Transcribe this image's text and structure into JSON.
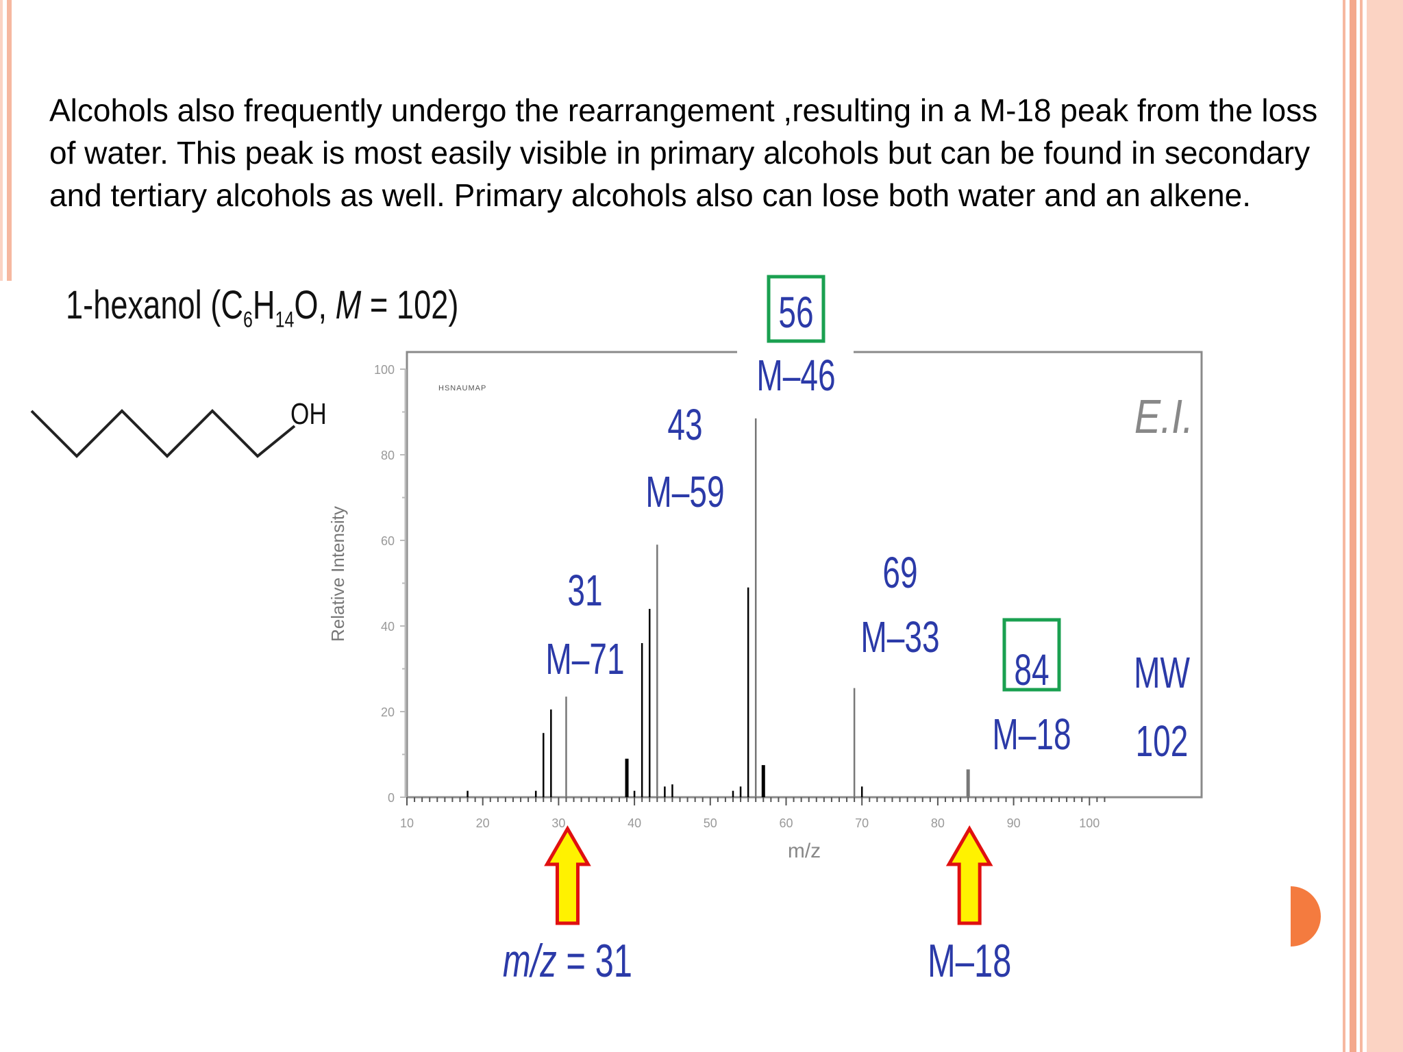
{
  "body_text": "Alcohols also frequently undergo the rearrangement ,resulting in a M-18 peak from the loss of water. This peak is most easily visible in primary alcohols but can be found in secondary and tertiary alcohols as well. Primary alcohols also can lose both water and an alkene.",
  "compound": {
    "name": "1-hexanol (C",
    "c_sub": "6",
    "h": "H",
    "h_sub": "14",
    "o": "O, ",
    "m_italic": "M",
    "mw_text": " = 102)",
    "oh_label": "OH"
  },
  "chart_data": {
    "type": "bar",
    "subtype": "mass-spectrum-stick",
    "header_label": "HSNAUMAP",
    "ionization_label": "E.I.",
    "xlabel": "m/z",
    "ylabel": "Relative Intensity",
    "xlim": [
      10,
      102
    ],
    "ylim": [
      0,
      100
    ],
    "xticks": [
      10,
      20,
      30,
      40,
      50,
      60,
      70,
      80,
      90,
      100
    ],
    "yticks": [
      0,
      20,
      40,
      60,
      80,
      100
    ],
    "grid": false,
    "peaks": [
      {
        "mz": 18,
        "intensity": 1.5
      },
      {
        "mz": 27,
        "intensity": 1.5
      },
      {
        "mz": 28,
        "intensity": 15
      },
      {
        "mz": 29,
        "intensity": 20.5
      },
      {
        "mz": 31,
        "intensity": 23.5
      },
      {
        "mz": 39,
        "intensity": 9
      },
      {
        "mz": 40,
        "intensity": 1.5
      },
      {
        "mz": 41,
        "intensity": 36
      },
      {
        "mz": 42,
        "intensity": 44
      },
      {
        "mz": 43,
        "intensity": 59
      },
      {
        "mz": 44,
        "intensity": 2.5
      },
      {
        "mz": 45,
        "intensity": 3
      },
      {
        "mz": 53,
        "intensity": 1.5
      },
      {
        "mz": 54,
        "intensity": 2.5
      },
      {
        "mz": 55,
        "intensity": 49
      },
      {
        "mz": 56,
        "intensity": 88.5
      },
      {
        "mz": 57,
        "intensity": 7.5
      },
      {
        "mz": 69,
        "intensity": 25.5
      },
      {
        "mz": 70,
        "intensity": 2.5
      },
      {
        "mz": 84,
        "intensity": 6.5
      }
    ],
    "annotations": [
      {
        "id": "31",
        "mz_label": "31",
        "loss_label": "M–71",
        "boxed": false
      },
      {
        "id": "43",
        "mz_label": "43",
        "loss_label": "M–59",
        "boxed": false
      },
      {
        "id": "56",
        "mz_label": "56",
        "loss_label": "M–46",
        "boxed": true
      },
      {
        "id": "69",
        "mz_label": "69",
        "loss_label": "M–33",
        "boxed": false
      },
      {
        "id": "84",
        "mz_label": "84",
        "loss_label": "M–18",
        "boxed": true
      },
      {
        "id": "mw",
        "mz_label": "MW",
        "loss_label": "102",
        "boxed": false
      }
    ],
    "arrows": [
      {
        "mz": 31,
        "caption_prefix": "m/z",
        "caption_value": " = 31"
      },
      {
        "mz": 84,
        "caption": "M–18"
      }
    ],
    "colors": {
      "annotation_text": "#2b3aa8",
      "box_border": "#1aa050",
      "arrow_fill": "#fff200",
      "arrow_stroke": "#e01010",
      "frame": "#8a8a8a",
      "peak": "#000000",
      "ionization_label": "#888888"
    }
  },
  "theme": {
    "accent": "#f47b3f",
    "border_light": "#fbd3c3",
    "border_mid": "#f6b8a0"
  }
}
